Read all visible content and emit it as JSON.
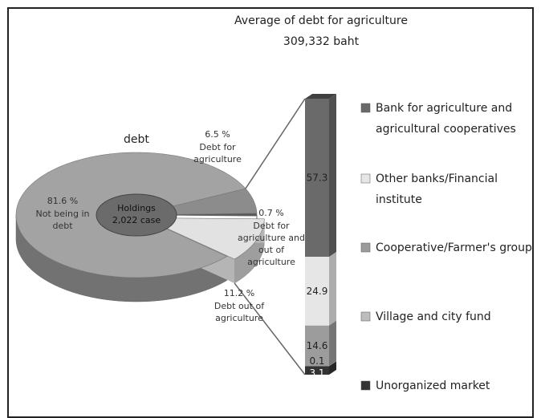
{
  "chart_data": [
    {
      "type": "pie",
      "title": "debt",
      "center_label": "Holdings 2,022 case",
      "categories": [
        "Not being in debt",
        "Debt for agriculture",
        "Debt for agriculture and out of agriculture",
        "Debt out of agriculture"
      ],
      "values": [
        81.6,
        6.5,
        0.7,
        11.2
      ],
      "value_labels": [
        "81.6  %",
        "6.5  %",
        "0.7  %",
        "11.2  %"
      ],
      "colors": [
        "#a3a3a3",
        "#8c8c8c",
        "#5a5a5a",
        "#e2e2e2"
      ]
    },
    {
      "type": "stacked_bar",
      "title": "Average of debt for agriculture",
      "subtitle": "309,332 baht",
      "ylim": [
        0,
        100
      ],
      "series": [
        {
          "name": "Bank for agriculture and agricultural cooperatives",
          "color": "#6a6a6a",
          "values": [
            57.3
          ]
        },
        {
          "name": "Other banks/Financial institute",
          "color": "#e6e6e6",
          "values": [
            24.9
          ]
        },
        {
          "name": "Cooperative/Farmer's group",
          "color": "#9c9c9c",
          "values": [
            14.6
          ]
        },
        {
          "name": "Village and city fund",
          "color": "#bdbdbd",
          "values": [
            0.1
          ]
        },
        {
          "name": "Unorganized market",
          "color": "#333333",
          "values": [
            3.1
          ]
        }
      ]
    }
  ]
}
